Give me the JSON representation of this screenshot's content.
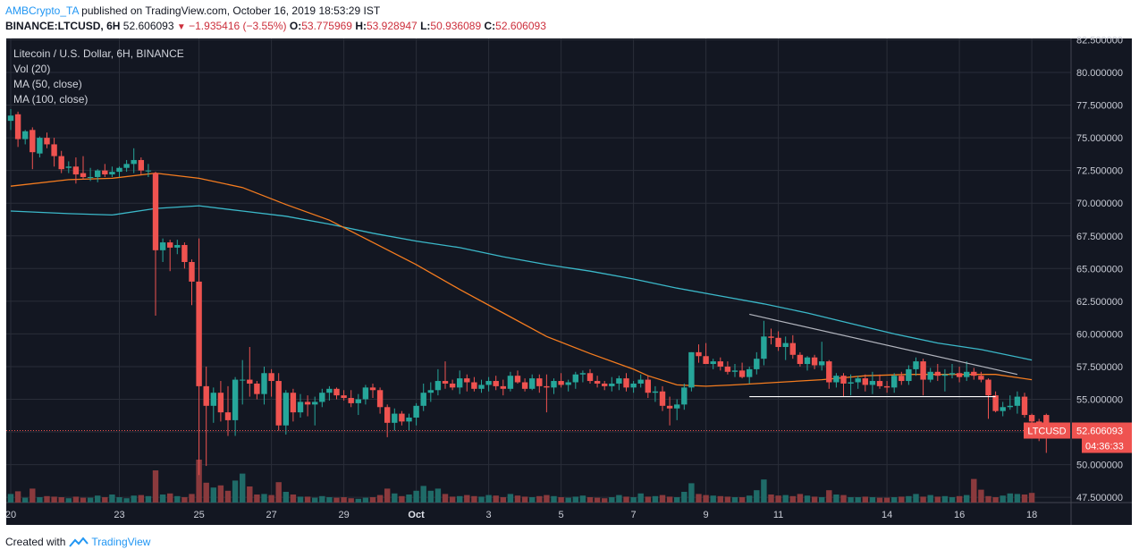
{
  "header": {
    "author": "AMBCrypto_TA",
    "published_text": "published on TradingView.com, October 16, 2019 18:53:29 IST",
    "symbol": "BINANCE:LTCUSD, 6H",
    "last": "52.606093",
    "change": "−1.935416 (−3.55%)",
    "o_label": "O:",
    "o_value": "53.775969",
    "h_label": "H:",
    "h_value": "53.928947",
    "l_label": "L:",
    "l_value": "50.936089",
    "c_label": "C:",
    "c_value": "52.606093"
  },
  "legend": {
    "title": "Litecoin / U.S. Dollar, 6H, BINANCE",
    "vol": "Vol (20)",
    "ma50": "MA (50, close)",
    "ma100": "MA (100, close)"
  },
  "price_label": {
    "symbol": "LTCUSD",
    "value": "52.606093",
    "countdown": "04:36:33"
  },
  "footer": {
    "created_with": "Created with",
    "brand": "TradingView"
  },
  "colors": {
    "background": "#131722",
    "up": "#26a69a",
    "down": "#ef5350",
    "ma50": "#f57c1f",
    "ma100": "#3bb8c9",
    "grid": "#2a2e39",
    "text": "#c9ccd6"
  },
  "chart_data": {
    "type": "candlestick",
    "title": "Litecoin / U.S. Dollar, 6H, BINANCE",
    "interval": "6H",
    "y_ticks": [
      "82.500000",
      "80.000000",
      "77.500000",
      "75.000000",
      "72.500000",
      "70.000000",
      "67.500000",
      "65.000000",
      "62.500000",
      "60.000000",
      "57.500000",
      "55.000000",
      "52.500000",
      "50.000000",
      "47.500000"
    ],
    "ylim": [
      47.1,
      82.6
    ],
    "x_ticks": [
      "20",
      "23",
      "25",
      "27",
      "29",
      "Oct",
      "3",
      "5",
      "7",
      "9",
      "11",
      "14",
      "16",
      "18"
    ],
    "x_tick_index": [
      0,
      15,
      26,
      36,
      46,
      56,
      66,
      76,
      86,
      96,
      106,
      121,
      131,
      141
    ],
    "candles": [
      [
        76.3,
        77.2,
        75.6,
        76.7
      ],
      [
        76.8,
        77.0,
        74.3,
        74.9
      ],
      [
        74.9,
        75.6,
        74.5,
        75.5
      ],
      [
        75.6,
        75.8,
        72.6,
        73.9
      ],
      [
        73.8,
        75.1,
        73.5,
        75.0
      ],
      [
        75.0,
        75.4,
        74.2,
        74.5
      ],
      [
        74.5,
        75.0,
        72.8,
        73.6
      ],
      [
        73.6,
        74.0,
        72.3,
        72.6
      ],
      [
        72.7,
        73.2,
        72.3,
        72.8
      ],
      [
        72.8,
        73.5,
        71.5,
        72.2
      ],
      [
        72.3,
        73.6,
        71.8,
        72.0
      ],
      [
        72.0,
        72.7,
        71.7,
        72.0
      ],
      [
        72.0,
        72.6,
        71.6,
        72.5
      ],
      [
        72.5,
        73.0,
        72.0,
        72.2
      ],
      [
        72.2,
        72.8,
        72.0,
        72.4
      ],
      [
        72.4,
        72.8,
        72.0,
        72.7
      ],
      [
        72.7,
        73.3,
        72.4,
        73.0
      ],
      [
        73.0,
        74.2,
        72.3,
        73.3
      ],
      [
        73.3,
        73.5,
        72.2,
        72.5
      ],
      [
        72.5,
        73.0,
        72.0,
        72.5
      ],
      [
        72.3,
        72.4,
        61.4,
        66.4
      ],
      [
        66.4,
        67.3,
        65.5,
        67.0
      ],
      [
        67.0,
        67.2,
        64.8,
        66.6
      ],
      [
        66.6,
        67.2,
        66.1,
        66.8
      ],
      [
        66.8,
        67.0,
        65.0,
        65.5
      ],
      [
        65.5,
        65.7,
        62.2,
        64.0
      ],
      [
        64.0,
        67.3,
        49.2,
        56.0
      ],
      [
        56.0,
        57.5,
        49.9,
        54.5
      ],
      [
        54.5,
        55.9,
        53.2,
        55.5
      ],
      [
        55.5,
        56.4,
        53.3,
        54.0
      ],
      [
        54.0,
        56.0,
        52.2,
        53.4
      ],
      [
        53.4,
        56.7,
        52.2,
        56.5
      ],
      [
        56.5,
        58.0,
        54.6,
        56.5
      ],
      [
        56.5,
        59.0,
        55.2,
        56.2
      ],
      [
        56.2,
        56.4,
        55.0,
        55.4
      ],
      [
        55.4,
        57.5,
        54.6,
        57.0
      ],
      [
        57.0,
        57.3,
        55.2,
        56.4
      ],
      [
        56.4,
        57.0,
        52.6,
        53.0
      ],
      [
        53.0,
        55.7,
        52.3,
        55.5
      ],
      [
        55.5,
        55.8,
        53.3,
        54.0
      ],
      [
        54.0,
        55.4,
        53.6,
        54.8
      ],
      [
        54.8,
        55.3,
        53.7,
        54.6
      ],
      [
        54.6,
        55.2,
        53.0,
        54.8
      ],
      [
        54.8,
        55.8,
        54.4,
        55.5
      ],
      [
        55.5,
        56.0,
        54.9,
        55.8
      ],
      [
        55.8,
        55.9,
        55.0,
        55.3
      ],
      [
        55.3,
        55.7,
        54.9,
        55.1
      ],
      [
        55.1,
        55.7,
        54.4,
        54.7
      ],
      [
        54.7,
        55.4,
        53.8,
        55.0
      ],
      [
        55.0,
        56.1,
        54.6,
        55.9
      ],
      [
        55.9,
        56.2,
        55.1,
        55.7
      ],
      [
        55.7,
        55.9,
        53.9,
        54.4
      ],
      [
        54.4,
        54.6,
        52.1,
        53.2
      ],
      [
        53.2,
        54.3,
        52.6,
        53.9
      ],
      [
        53.9,
        54.1,
        53.0,
        53.3
      ],
      [
        53.3,
        53.9,
        52.6,
        53.6
      ],
      [
        53.6,
        54.7,
        53.0,
        54.5
      ],
      [
        54.5,
        56.2,
        54.1,
        55.5
      ],
      [
        55.5,
        56.3,
        54.8,
        55.7
      ],
      [
        55.7,
        57.3,
        55.3,
        56.4
      ],
      [
        56.4,
        57.9,
        55.8,
        56.2
      ],
      [
        56.2,
        56.5,
        55.7,
        55.9
      ],
      [
        55.9,
        57.2,
        55.4,
        56.6
      ],
      [
        56.6,
        56.9,
        55.6,
        56.3
      ],
      [
        56.3,
        56.7,
        55.6,
        55.8
      ],
      [
        55.8,
        56.5,
        55.5,
        56.1
      ],
      [
        56.1,
        56.7,
        55.6,
        56.4
      ],
      [
        56.4,
        56.8,
        55.7,
        56.0
      ],
      [
        56.0,
        56.5,
        55.3,
        55.8
      ],
      [
        55.8,
        57.1,
        55.6,
        56.8
      ],
      [
        56.8,
        57.2,
        56.2,
        56.3
      ],
      [
        56.3,
        56.6,
        55.6,
        55.8
      ],
      [
        55.8,
        56.9,
        55.7,
        56.6
      ],
      [
        56.6,
        56.9,
        55.5,
        56.0
      ],
      [
        56.0,
        56.9,
        54.0,
        55.9
      ],
      [
        55.9,
        56.6,
        55.4,
        56.4
      ],
      [
        56.4,
        57.0,
        55.9,
        56.1
      ],
      [
        56.1,
        56.5,
        55.6,
        56.3
      ],
      [
        56.3,
        57.1,
        55.8,
        56.9
      ],
      [
        56.9,
        57.2,
        56.3,
        57.0
      ],
      [
        57.0,
        57.3,
        56.2,
        56.4
      ],
      [
        56.4,
        56.8,
        55.9,
        56.2
      ],
      [
        56.2,
        56.4,
        55.7,
        56.0
      ],
      [
        56.0,
        56.7,
        55.6,
        56.2
      ],
      [
        56.2,
        56.8,
        55.7,
        56.6
      ],
      [
        56.6,
        57.0,
        55.6,
        55.9
      ],
      [
        55.9,
        56.4,
        55.5,
        56.2
      ],
      [
        56.2,
        56.9,
        55.9,
        56.5
      ],
      [
        56.5,
        56.8,
        55.1,
        55.5
      ],
      [
        55.5,
        56.0,
        54.8,
        55.6
      ],
      [
        55.6,
        56.0,
        54.1,
        54.5
      ],
      [
        54.5,
        55.2,
        53.0,
        54.3
      ],
      [
        54.3,
        55.0,
        53.4,
        54.6
      ],
      [
        54.6,
        56.2,
        54.2,
        55.9
      ],
      [
        55.9,
        58.6,
        55.6,
        58.6
      ],
      [
        58.6,
        59.2,
        57.8,
        58.3
      ],
      [
        58.3,
        59.3,
        57.7,
        57.7
      ],
      [
        57.7,
        58.1,
        57.3,
        57.9
      ],
      [
        57.9,
        58.2,
        57.2,
        57.5
      ],
      [
        57.5,
        57.9,
        56.9,
        57.1
      ],
      [
        57.1,
        57.7,
        56.7,
        57.2
      ],
      [
        57.2,
        57.8,
        56.6,
        56.7
      ],
      [
        56.7,
        57.5,
        56.2,
        57.3
      ],
      [
        57.3,
        58.6,
        56.9,
        58.1
      ],
      [
        58.1,
        61.0,
        57.6,
        59.8
      ],
      [
        59.8,
        60.4,
        59.2,
        59.7
      ],
      [
        59.7,
        60.2,
        58.7,
        59.0
      ],
      [
        59.0,
        59.8,
        58.0,
        59.3
      ],
      [
        59.3,
        59.9,
        58.1,
        58.4
      ],
      [
        58.4,
        58.6,
        57.5,
        57.7
      ],
      [
        57.7,
        58.3,
        57.2,
        58.2
      ],
      [
        58.2,
        58.4,
        57.3,
        57.6
      ],
      [
        57.6,
        59.4,
        57.2,
        57.9
      ],
      [
        57.9,
        58.0,
        55.8,
        56.3
      ],
      [
        56.3,
        57.0,
        55.9,
        56.8
      ],
      [
        56.8,
        57.0,
        55.2,
        56.2
      ],
      [
        56.2,
        56.9,
        55.3,
        56.3
      ],
      [
        56.3,
        56.8,
        55.8,
        56.6
      ],
      [
        56.6,
        56.9,
        55.6,
        56.1
      ],
      [
        56.1,
        57.1,
        55.4,
        56.4
      ],
      [
        56.4,
        56.9,
        55.8,
        56.0
      ],
      [
        56.0,
        56.4,
        55.5,
        55.9
      ],
      [
        55.9,
        57.0,
        55.5,
        56.8
      ],
      [
        56.8,
        57.1,
        56.1,
        56.4
      ],
      [
        56.4,
        57.6,
        56.1,
        57.3
      ],
      [
        57.3,
        58.2,
        56.8,
        57.9
      ],
      [
        57.9,
        58.1,
        55.3,
        56.5
      ],
      [
        56.5,
        57.4,
        56.3,
        57.1
      ],
      [
        57.1,
        57.7,
        56.4,
        56.8
      ],
      [
        56.8,
        57.3,
        55.6,
        56.9
      ],
      [
        56.9,
        57.7,
        56.6,
        57.0
      ],
      [
        57.0,
        57.5,
        56.3,
        56.7
      ],
      [
        56.7,
        57.9,
        56.4,
        57.1
      ],
      [
        57.1,
        57.4,
        56.5,
        56.8
      ],
      [
        56.8,
        57.1,
        56.3,
        56.5
      ],
      [
        56.5,
        56.6,
        53.5,
        55.3
      ],
      [
        55.3,
        55.6,
        54.0,
        54.1
      ],
      [
        54.1,
        54.8,
        53.7,
        54.4
      ],
      [
        54.4,
        55.3,
        54.2,
        54.5
      ],
      [
        54.5,
        55.6,
        53.9,
        55.2
      ],
      [
        55.2,
        55.5,
        53.6,
        53.8
      ],
      [
        53.8,
        53.9,
        53.0,
        53.3
      ],
      [
        53.3,
        53.5,
        51.8,
        52.7
      ],
      [
        53.8,
        53.9,
        50.9,
        52.6
      ]
    ],
    "volume": [
      1.6,
      2.1,
      0.9,
      2.6,
      1.0,
      1.2,
      1.1,
      1.0,
      0.8,
      1.1,
      0.9,
      0.9,
      1.3,
      1.0,
      1.5,
      1.0,
      0.8,
      1.3,
      1.4,
      1.2,
      6.0,
      1.5,
      1.7,
      1.2,
      1.0,
      1.6,
      8.0,
      3.7,
      2.8,
      3.2,
      2.2,
      4.1,
      5.4,
      3.0,
      1.5,
      1.6,
      1.4,
      3.8,
      2.0,
      1.5,
      1.1,
      1.1,
      0.9,
      1.2,
      1.0,
      0.9,
      1.0,
      0.8,
      0.7,
      0.9,
      1.0,
      1.4,
      2.6,
      1.7,
      1.2,
      1.5,
      2.2,
      3.1,
      2.2,
      2.6,
      1.6,
      1.1,
      1.2,
      1.4,
      1.2,
      1.1,
      1.4,
      1.3,
      1.0,
      1.6,
      1.3,
      1.1,
      1.0,
      1.2,
      1.4,
      1.2,
      1.0,
      0.9,
      1.1,
      1.3,
      1.0,
      0.9,
      0.8,
      1.0,
      1.4,
      1.1,
      1.0,
      1.7,
      1.1,
      1.2,
      1.4,
      1.1,
      1.0,
      2.0,
      3.6,
      1.6,
      1.4,
      1.3,
      1.2,
      1.1,
      1.0,
      1.0,
      1.3,
      2.3,
      4.3,
      1.5,
      1.3,
      1.4,
      1.2,
      1.6,
      1.3,
      1.1,
      1.0,
      2.3,
      1.5,
      1.4,
      1.0,
      1.0,
      1.1,
      1.0,
      0.9,
      0.9,
      1.0,
      1.1,
      1.2,
      1.6,
      1.1,
      1.4,
      1.1,
      1.2,
      1.0,
      1.2,
      1.4,
      4.4,
      2.4,
      1.2,
      1.0,
      1.3,
      1.7,
      1.6,
      1.5,
      1.8
    ],
    "ma50": [
      [
        0,
        71.3
      ],
      [
        8,
        71.8
      ],
      [
        14,
        71.9
      ],
      [
        20,
        72.3
      ],
      [
        26,
        71.9
      ],
      [
        32,
        71.2
      ],
      [
        38,
        69.9
      ],
      [
        44,
        68.7
      ],
      [
        50,
        67.0
      ],
      [
        56,
        65.3
      ],
      [
        62,
        63.4
      ],
      [
        68,
        61.6
      ],
      [
        74,
        59.8
      ],
      [
        80,
        58.5
      ],
      [
        86,
        57.3
      ],
      [
        88,
        56.8
      ],
      [
        92,
        56.1
      ],
      [
        96,
        56.0
      ],
      [
        100,
        56.1
      ],
      [
        106,
        56.3
      ],
      [
        112,
        56.5
      ],
      [
        118,
        56.8
      ],
      [
        124,
        56.9
      ],
      [
        130,
        56.9
      ],
      [
        136,
        56.9
      ],
      [
        141,
        56.5
      ]
    ],
    "ma100": [
      [
        0,
        69.4
      ],
      [
        8,
        69.2
      ],
      [
        14,
        69.1
      ],
      [
        20,
        69.6
      ],
      [
        26,
        69.8
      ],
      [
        32,
        69.4
      ],
      [
        38,
        69.0
      ],
      [
        44,
        68.4
      ],
      [
        50,
        67.7
      ],
      [
        56,
        67.1
      ],
      [
        62,
        66.6
      ],
      [
        68,
        65.9
      ],
      [
        74,
        65.3
      ],
      [
        80,
        64.8
      ],
      [
        86,
        64.2
      ],
      [
        92,
        63.5
      ],
      [
        98,
        62.9
      ],
      [
        104,
        62.3
      ],
      [
        110,
        61.6
      ],
      [
        116,
        60.8
      ],
      [
        122,
        60.0
      ],
      [
        128,
        59.3
      ],
      [
        134,
        58.8
      ],
      [
        141,
        58.0
      ]
    ],
    "annotations": {
      "trendline": [
        [
          102,
          61.5
        ],
        [
          139,
          56.9
        ]
      ],
      "support": [
        [
          102,
          55.2
        ],
        [
          136,
          55.2
        ]
      ]
    },
    "last_price": 52.606093
  }
}
